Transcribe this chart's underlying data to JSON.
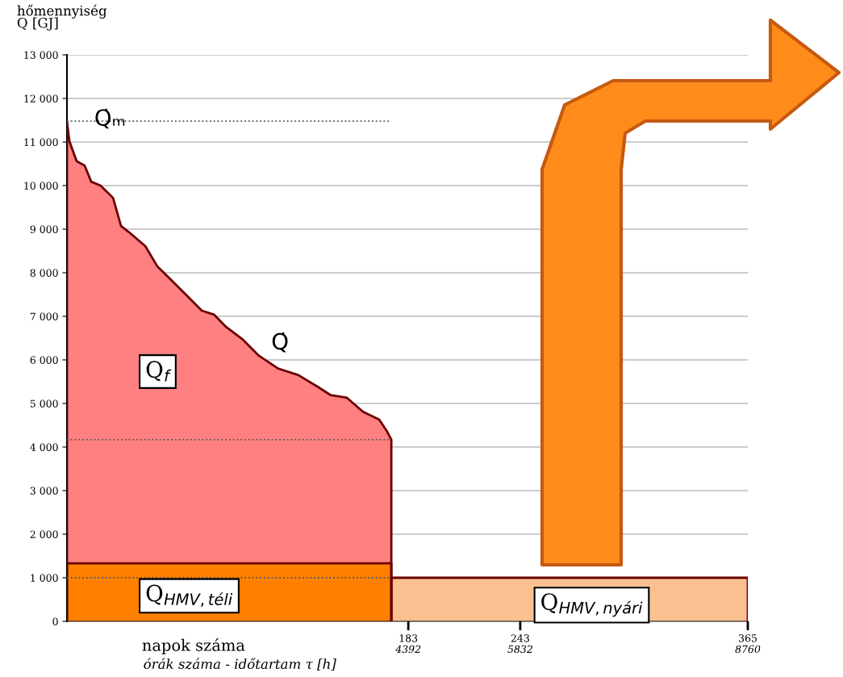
{
  "chart_data": {
    "type": "area",
    "ylabel": "hőmennyiség\nQ [GJ]",
    "xlabel": "napok száma",
    "xlim": [
      0,
      365
    ],
    "xticks": [
      183,
      243,
      365
    ],
    "x2lim": [
      0,
      8760
    ],
    "x2ticks": [
      4392,
      5832,
      8760
    ],
    "ylim": [
      0,
      13000
    ],
    "yticks": [
      {
        "value": 0,
        "label": "0"
      },
      {
        "value": 1000,
        "label": "1 000"
      },
      {
        "value": 2000,
        "label": "2 000"
      },
      {
        "value": 3000,
        "label": "3 000"
      },
      {
        "value": 4000,
        "label": "4 000"
      },
      {
        "value": 5000,
        "label": "5 000"
      },
      {
        "value": 6000,
        "label": "6 000"
      },
      {
        "value": 7000,
        "label": "7 000"
      },
      {
        "value": 8000,
        "label": "8 000"
      },
      {
        "value": 9000,
        "label": "9 000"
      },
      {
        "value": 10000,
        "label": "10 000"
      },
      {
        "value": 11000,
        "label": "11 000"
      },
      {
        "value": 12000,
        "label": "12 000"
      },
      {
        "value": 13000,
        "label": "13 000"
      }
    ],
    "grid": "y",
    "series": [
      {
        "color": "#ff8080",
        "x": [
          0,
          1.3,
          5.2,
          9.5,
          13,
          18,
          24.7,
          29,
          33.3,
          42,
          48.4,
          55,
          63.7,
          72.3,
          78.8,
          85.2,
          93.9,
          102.5,
          113.3,
          124.1,
          134.9,
          141.4,
          150.1,
          158.7,
          167.4,
          171.7,
          173.9
        ],
        "values": [
          11480,
          11020,
          10560,
          10460,
          10090,
          10000,
          9720,
          9070,
          8930,
          8610,
          8150,
          7870,
          7500,
          7130,
          7040,
          6760,
          6480,
          6110,
          5800,
          5650,
          5370,
          5190,
          5130,
          4810,
          4630,
          4350,
          4170
        ]
      },
      {
        "color": "#ff8000",
        "x": [
          0,
          173.9
        ],
        "values": [
          1330,
          1330
        ]
      },
      {
        "color": "#fac090",
        "x": [
          173.9,
          365
        ],
        "values": [
          1000,
          1000
        ]
      }
    ],
    "ref_lines": [
      {
        "axis": "y",
        "value": 11480,
        "label": null,
        "line_style": "dotted",
        "color": "#555555"
      },
      {
        "axis": "y",
        "value": 4170,
        "label": null,
        "line_style": "dotted",
        "color": "#555555"
      },
      {
        "axis": "y",
        "value": 1000,
        "label": null,
        "line_style": "dotted",
        "color": "#555555"
      }
    ],
    "annotations": [
      "Q̇ₘ",
      "Q̇",
      "Q$_{f}$",
      "Q$_{HMV,téli}$",
      "Q$_{HMV,nyári}$",
      "órák száma - időtartam τ [h]"
    ]
  }
}
